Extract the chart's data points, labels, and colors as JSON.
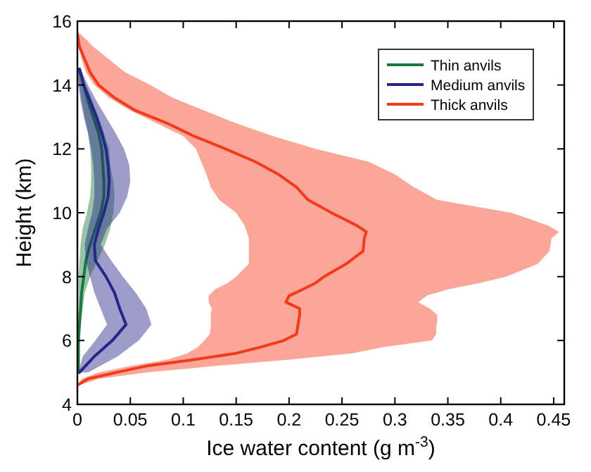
{
  "chart_data": {
    "type": "line",
    "orientation": "horizontal",
    "xlabel": "Ice water content (g m$^{-3}$)",
    "ylabel": "Height (km)",
    "xlim": [
      0,
      0.46
    ],
    "xticks": [
      0,
      0.05,
      0.1,
      0.15,
      0.2,
      0.25,
      0.3,
      0.35,
      0.4,
      0.45
    ],
    "ylim": [
      4,
      16
    ],
    "yticks": [
      4,
      6,
      8,
      10,
      12,
      14,
      16
    ],
    "legend": "top right",
    "line_style": "solid",
    "marker": "none",
    "series": [
      {
        "name": "Thin anvils",
        "color": "#1a7a3c",
        "x": [
          5.0,
          5.5,
          6.0,
          6.5,
          7.0,
          7.5,
          8.0,
          8.5,
          9.0,
          9.5,
          10.0,
          10.5,
          11.0,
          11.5,
          12.0,
          12.5,
          13.0,
          13.5,
          14.0,
          14.5
        ],
        "values": [
          0.001,
          0.001,
          0.001,
          0.002,
          0.003,
          0.004,
          0.006,
          0.008,
          0.012,
          0.017,
          0.022,
          0.025,
          0.025,
          0.024,
          0.023,
          0.02,
          0.015,
          0.01,
          0.006,
          0.002
        ],
        "lower": [
          0,
          0,
          0,
          0,
          0.001,
          0.001,
          0.001,
          0.002,
          0.003,
          0.005,
          0.009,
          0.012,
          0.013,
          0.013,
          0.012,
          0.01,
          0.007,
          0.004,
          0.002,
          0
        ],
        "upper": [
          0.002,
          0.002,
          0.002,
          0.003,
          0.005,
          0.007,
          0.012,
          0.019,
          0.026,
          0.031,
          0.034,
          0.035,
          0.034,
          0.031,
          0.03,
          0.025,
          0.02,
          0.014,
          0.008,
          0.003
        ]
      },
      {
        "name": "Medium anvils",
        "color": "#25258a",
        "x": [
          5.0,
          5.5,
          6.0,
          6.5,
          7.0,
          7.5,
          8.0,
          8.5,
          9.0,
          9.5,
          10.0,
          10.5,
          11.0,
          11.5,
          12.0,
          12.5,
          13.0,
          13.5,
          14.0,
          14.5
        ],
        "values": [
          0.002,
          0.016,
          0.033,
          0.046,
          0.04,
          0.035,
          0.027,
          0.017,
          0.016,
          0.02,
          0.025,
          0.029,
          0.03,
          0.029,
          0.027,
          0.023,
          0.018,
          0.012,
          0.006,
          0.002
        ],
        "lower": [
          0.001,
          0.005,
          0.017,
          0.028,
          0.022,
          0.016,
          0.012,
          0.008,
          0.007,
          0.01,
          0.014,
          0.016,
          0.016,
          0.015,
          0.013,
          0.01,
          0.006,
          0.003,
          0.001,
          0
        ],
        "upper": [
          0.01,
          0.038,
          0.058,
          0.07,
          0.065,
          0.055,
          0.043,
          0.032,
          0.022,
          0.028,
          0.04,
          0.047,
          0.05,
          0.049,
          0.044,
          0.036,
          0.027,
          0.018,
          0.01,
          0.003
        ]
      },
      {
        "name": "Thick anvils",
        "color": "#f43a1c",
        "x": [
          4.6,
          4.8,
          5.0,
          5.2,
          5.4,
          5.6,
          5.8,
          6.0,
          6.2,
          6.4,
          6.6,
          6.8,
          7.0,
          7.2,
          7.4,
          7.6,
          7.8,
          8.0,
          8.4,
          8.8,
          9.2,
          9.4,
          9.6,
          10.0,
          10.4,
          10.8,
          11.2,
          11.6,
          12.0,
          12.4,
          12.8,
          13.2,
          13.6,
          14.0,
          14.4,
          14.8,
          15.2,
          15.6
        ],
        "values": [
          0,
          0.01,
          0.037,
          0.065,
          0.11,
          0.15,
          0.174,
          0.195,
          0.207,
          0.208,
          0.209,
          0.21,
          0.21,
          0.197,
          0.2,
          0.213,
          0.225,
          0.233,
          0.254,
          0.27,
          0.271,
          0.273,
          0.264,
          0.24,
          0.218,
          0.207,
          0.19,
          0.168,
          0.14,
          0.11,
          0.085,
          0.055,
          0.035,
          0.02,
          0.012,
          0.007,
          0.002,
          0
        ],
        "lower": [
          0,
          0.004,
          0.02,
          0.05,
          0.085,
          0.104,
          0.114,
          0.12,
          0.125,
          0.126,
          0.126,
          0.126,
          0.127,
          0.124,
          0.124,
          0.13,
          0.142,
          0.15,
          0.162,
          0.162,
          0.162,
          0.16,
          0.158,
          0.15,
          0.134,
          0.126,
          0.122,
          0.117,
          0.112,
          0.1,
          0.075,
          0.05,
          0.03,
          0.016,
          0.008,
          0.004,
          0.001,
          0
        ],
        "upper": [
          0.002,
          0.02,
          0.065,
          0.13,
          0.2,
          0.26,
          0.29,
          0.335,
          0.339,
          0.339,
          0.34,
          0.34,
          0.333,
          0.322,
          0.33,
          0.35,
          0.38,
          0.405,
          0.435,
          0.446,
          0.448,
          0.455,
          0.445,
          0.41,
          0.34,
          0.318,
          0.3,
          0.275,
          0.225,
          0.185,
          0.15,
          0.12,
          0.09,
          0.069,
          0.045,
          0.03,
          0.015,
          0.003
        ]
      }
    ]
  }
}
